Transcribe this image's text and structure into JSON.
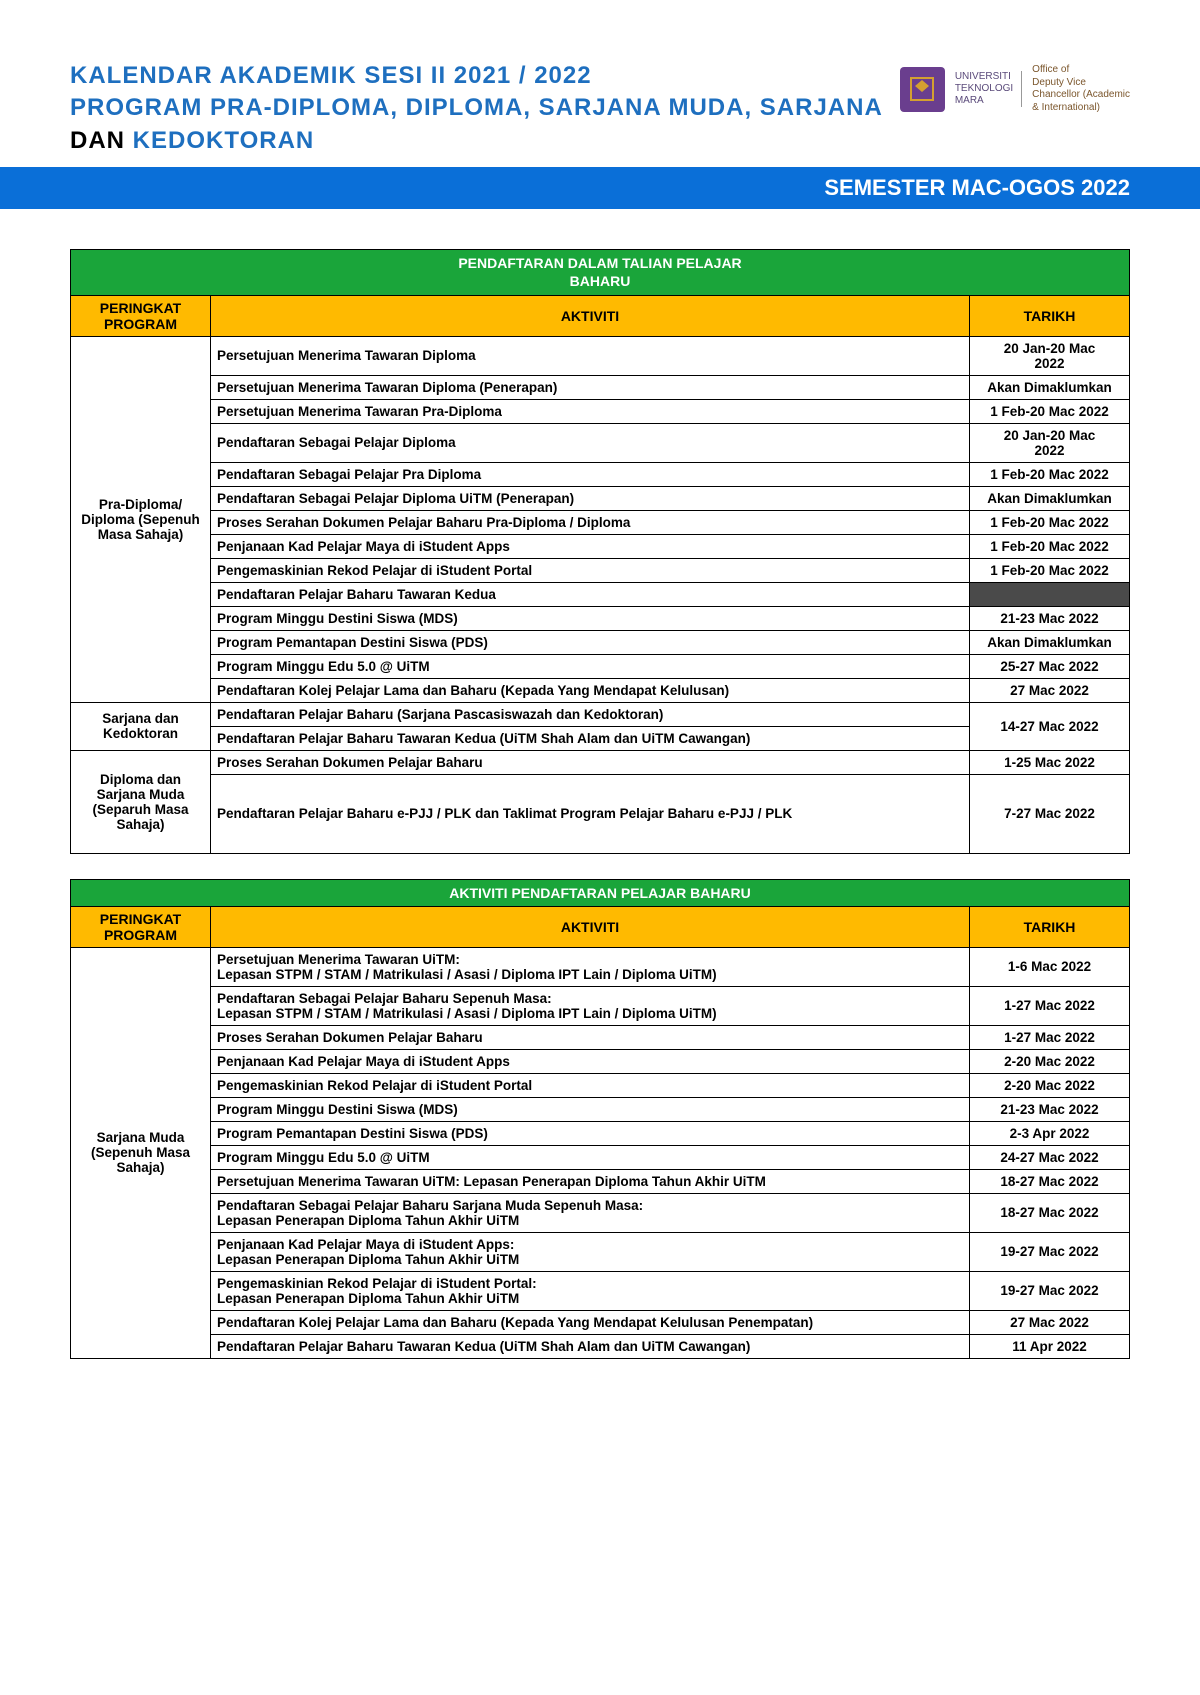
{
  "title_line1": "KALENDAR AKADEMIK SESI II 2021 / 2022",
  "title_line2_a": "PROGRAM PRA-DIPLOMA, DIPLOMA, SARJANA MUDA, SARJANA ",
  "title_line2_b": "DAN",
  "title_line2_c": " KEDOKTORAN",
  "logo_uni": "UNIVERSITI\nTEKNOLOGI\nMARA",
  "office_line": "Office of\nDeputy Vice\nChancellor (Academic\n& International)",
  "semester_bar": "SEMESTER MAC-OGOS 2022",
  "colors": {
    "title_blue": "#1e6fbf",
    "bar_blue": "#0a6fd8",
    "section_green": "#1aa53a",
    "header_orange": "#ffba00",
    "dark_cell": "#4a4a4a",
    "border": "#000000"
  },
  "headers": {
    "program": "PERINGKAT PROGRAM",
    "activity": "AKTIVITI",
    "date": "TARIKH"
  },
  "section1_title": "PENDAFTARAN DALAM TALIAN PELAJAR\nBAHARU",
  "section1_groups": [
    {
      "program": "Pra-Diploma/ Diploma (Sepenuh Masa Sahaja)",
      "rows": [
        {
          "activity": "Persetujuan Menerima Tawaran Diploma",
          "date": "20 Jan-20 Mac\n2022"
        },
        {
          "activity": "Persetujuan Menerima Tawaran Diploma (Penerapan)",
          "date": "Akan Dimaklumkan"
        },
        {
          "activity": "Persetujuan Menerima Tawaran Pra-Diploma",
          "date": "1 Feb-20 Mac 2022"
        },
        {
          "activity": "Pendaftaran Sebagai Pelajar Diploma",
          "date": "20 Jan-20 Mac\n2022"
        },
        {
          "activity": "Pendaftaran Sebagai Pelajar Pra Diploma",
          "date": "1 Feb-20 Mac 2022"
        },
        {
          "activity": "Pendaftaran Sebagai Pelajar Diploma UiTM (Penerapan)",
          "date": "Akan Dimaklumkan"
        },
        {
          "activity": "Proses Serahan Dokumen Pelajar Baharu Pra-Diploma / Diploma",
          "date": "1 Feb-20 Mac 2022"
        },
        {
          "activity": "Penjanaan Kad Pelajar Maya di iStudent Apps",
          "date": "1 Feb-20 Mac 2022"
        },
        {
          "activity": "Pengemaskinian Rekod Pelajar di iStudent Portal",
          "date": "1 Feb-20 Mac 2022"
        },
        {
          "activity": "Pendaftaran Pelajar Baharu Tawaran Kedua",
          "date": "",
          "dark": true
        },
        {
          "activity": "Program Minggu Destini Siswa (MDS)",
          "date": "21-23 Mac 2022"
        },
        {
          "activity": "Program Pemantapan Destini Siswa (PDS)",
          "date": "Akan Dimaklumkan"
        },
        {
          "activity": "Program Minggu Edu 5.0 @ UiTM",
          "date": "25-27 Mac 2022"
        },
        {
          "activity": "Pendaftaran Kolej Pelajar Lama dan Baharu (Kepada Yang Mendapat Kelulusan)",
          "date": "27 Mac 2022"
        }
      ]
    },
    {
      "program": "Sarjana dan Kedoktoran",
      "merge_date": "14-27 Mac 2022",
      "rows": [
        {
          "activity": "Pendaftaran Pelajar Baharu (Sarjana Pascasiswazah dan Kedoktoran)"
        },
        {
          "activity": "Pendaftaran Pelajar Baharu Tawaran Kedua (UiTM Shah Alam dan UiTM Cawangan)"
        }
      ]
    },
    {
      "program": "Diploma dan Sarjana Muda (Separuh Masa Sahaja)",
      "rows": [
        {
          "activity": "Proses Serahan Dokumen Pelajar Baharu",
          "date": "1-25 Mac 2022"
        },
        {
          "activity": "Pendaftaran Pelajar Baharu e-PJJ / PLK dan Taklimat Program Pelajar Baharu e-PJJ / PLK",
          "date": "7-27 Mac 2022",
          "tall": true
        }
      ]
    }
  ],
  "section2_title": "AKTIVITI PENDAFTARAN PELAJAR BAHARU",
  "section2_groups": [
    {
      "program": "Sarjana Muda (Sepenuh Masa Sahaja)",
      "rows": [
        {
          "activity": "Persetujuan Menerima Tawaran UiTM:\nLepasan STPM / STAM / Matrikulasi / Asasi / Diploma IPT Lain / Diploma UiTM)",
          "date": "1-6 Mac 2022"
        },
        {
          "activity": "Pendaftaran Sebagai Pelajar Baharu Sepenuh Masa:\nLepasan STPM / STAM / Matrikulasi / Asasi / Diploma IPT Lain / Diploma UiTM)",
          "date": "1-27 Mac 2022"
        },
        {
          "activity": "Proses Serahan Dokumen Pelajar Baharu",
          "date": "1-27 Mac 2022"
        },
        {
          "activity": "Penjanaan Kad Pelajar Maya di iStudent Apps",
          "date": "2-20 Mac 2022"
        },
        {
          "activity": "Pengemaskinian Rekod Pelajar di iStudent Portal",
          "date": "2-20 Mac 2022"
        },
        {
          "activity": "Program Minggu Destini Siswa (MDS)",
          "date": "21-23 Mac 2022"
        },
        {
          "activity": "Program Pemantapan Destini Siswa (PDS)",
          "date": "2-3 Apr 2022"
        },
        {
          "activity": "Program Minggu Edu 5.0 @ UiTM",
          "date": "24-27 Mac 2022"
        },
        {
          "activity": "Persetujuan Menerima Tawaran UiTM: Lepasan Penerapan Diploma Tahun Akhir UiTM",
          "date": "18-27 Mac 2022"
        },
        {
          "activity": "Pendaftaran Sebagai Pelajar Baharu Sarjana Muda Sepenuh Masa:\nLepasan Penerapan Diploma Tahun Akhir UiTM",
          "date": "18-27 Mac 2022"
        },
        {
          "activity": "Penjanaan Kad Pelajar Maya di iStudent Apps:\nLepasan Penerapan Diploma Tahun Akhir UiTM",
          "date": "19-27 Mac 2022"
        },
        {
          "activity": "Pengemaskinian Rekod Pelajar di iStudent Portal:\nLepasan Penerapan Diploma Tahun Akhir UiTM",
          "date": "19-27 Mac 2022"
        },
        {
          "activity": "Pendaftaran Kolej Pelajar Lama dan Baharu (Kepada Yang Mendapat Kelulusan Penempatan)",
          "date": "27 Mac 2022"
        },
        {
          "activity": "Pendaftaran Pelajar Baharu Tawaran Kedua (UiTM Shah Alam dan UiTM Cawangan)",
          "date": "11 Apr 2022"
        }
      ]
    }
  ]
}
